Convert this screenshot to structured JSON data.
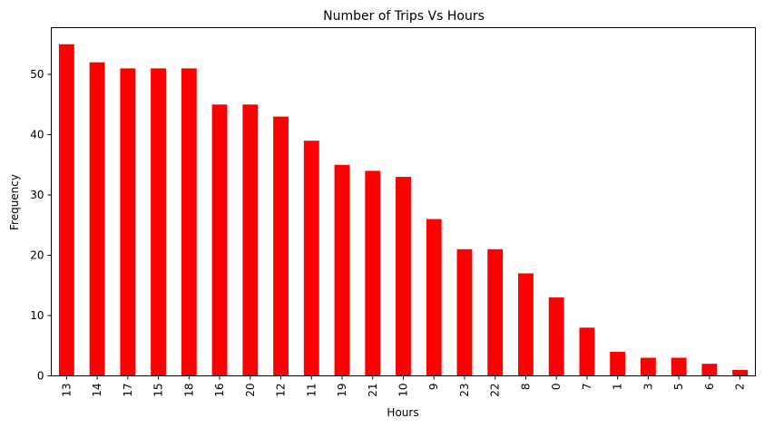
{
  "chart_data": {
    "type": "bar",
    "title": "Number of Trips Vs Hours",
    "xlabel": "Hours",
    "ylabel": "Frequency",
    "categories": [
      "13",
      "14",
      "17",
      "15",
      "18",
      "16",
      "20",
      "12",
      "11",
      "19",
      "21",
      "10",
      "9",
      "23",
      "22",
      "8",
      "0",
      "7",
      "1",
      "3",
      "5",
      "6",
      "2"
    ],
    "values": [
      55,
      52,
      51,
      51,
      51,
      45,
      45,
      43,
      39,
      35,
      34,
      33,
      26,
      21,
      21,
      17,
      13,
      8,
      4,
      3,
      3,
      2,
      1
    ],
    "ylim": [
      0,
      57.75
    ],
    "yticks": [
      "0",
      "10",
      "20",
      "30",
      "40",
      "50"
    ],
    "bar_color": "#ff0000",
    "grid": false,
    "legend": false
  }
}
